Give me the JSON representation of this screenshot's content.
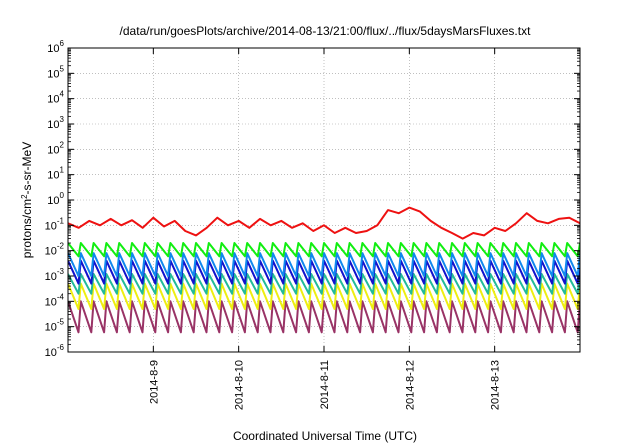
{
  "chart_data": {
    "type": "line",
    "title": "/data/run/goesPlots/archive/2014-08-13/21:00/flux/../flux/5daysMarsFluxes.txt",
    "xlabel": "Coordinated Universal Time (UTC)",
    "ylabel": {
      "base": "protons/cm",
      "sup": "2",
      "rest": "-s-sr-MeV"
    },
    "x_scale": "time",
    "xlim": [
      "2014-08-08 00:00",
      "2014-08-14 00:00"
    ],
    "x_ticks": [
      "2014-8-9",
      "2014-8-10",
      "2014-8-11",
      "2014-8-12",
      "2014-8-13"
    ],
    "y_scale": "log",
    "ylim": [
      1e-06,
      1000000
    ],
    "y_ticks": [
      {
        "base": "10",
        "exp": "6"
      },
      {
        "base": "10",
        "exp": "5"
      },
      {
        "base": "10",
        "exp": "4"
      },
      {
        "base": "10",
        "exp": "3"
      },
      {
        "base": "10",
        "exp": "2"
      },
      {
        "base": "10",
        "exp": "1"
      },
      {
        "base": "10",
        "exp": "0"
      },
      {
        "base": "10",
        "exp": "-1"
      },
      {
        "base": "10",
        "exp": "-2"
      },
      {
        "base": "10",
        "exp": "-3"
      },
      {
        "base": "10",
        "exp": "-4"
      },
      {
        "base": "10",
        "exp": "-5"
      },
      {
        "base": "10",
        "exp": "-6"
      }
    ],
    "grid": true,
    "legend": "none",
    "series": [
      {
        "color": "#ee1111",
        "x": [
          "2014-08-08 00:00",
          "2014-08-08 03:00",
          "2014-08-08 06:00",
          "2014-08-08 09:00",
          "2014-08-08 12:00",
          "2014-08-08 15:00",
          "2014-08-08 18:00",
          "2014-08-08 21:00",
          "2014-08-09 00:00",
          "2014-08-09 03:00",
          "2014-08-09 06:00",
          "2014-08-09 09:00",
          "2014-08-09 12:00",
          "2014-08-09 15:00",
          "2014-08-09 18:00",
          "2014-08-09 21:00",
          "2014-08-10 00:00",
          "2014-08-10 03:00",
          "2014-08-10 06:00",
          "2014-08-10 09:00",
          "2014-08-10 12:00",
          "2014-08-10 15:00",
          "2014-08-10 18:00",
          "2014-08-10 21:00",
          "2014-08-11 00:00",
          "2014-08-11 03:00",
          "2014-08-11 06:00",
          "2014-08-11 09:00",
          "2014-08-11 12:00",
          "2014-08-11 15:00",
          "2014-08-11 18:00",
          "2014-08-11 21:00",
          "2014-08-12 00:00",
          "2014-08-12 03:00",
          "2014-08-12 06:00",
          "2014-08-12 09:00",
          "2014-08-12 12:00",
          "2014-08-12 15:00",
          "2014-08-12 18:00",
          "2014-08-12 21:00",
          "2014-08-13 00:00",
          "2014-08-13 03:00",
          "2014-08-13 06:00",
          "2014-08-13 09:00",
          "2014-08-13 12:00",
          "2014-08-13 15:00",
          "2014-08-13 18:00",
          "2014-08-13 21:00",
          "2014-08-14 00:00"
        ],
        "values": [
          0.12,
          0.08,
          0.15,
          0.1,
          0.18,
          0.1,
          0.16,
          0.08,
          0.2,
          0.09,
          0.15,
          0.06,
          0.04,
          0.08,
          0.2,
          0.1,
          0.15,
          0.08,
          0.18,
          0.1,
          0.15,
          0.08,
          0.12,
          0.06,
          0.1,
          0.05,
          0.08,
          0.05,
          0.06,
          0.1,
          0.4,
          0.3,
          0.5,
          0.35,
          0.15,
          0.08,
          0.05,
          0.03,
          0.05,
          0.04,
          0.08,
          0.06,
          0.12,
          0.3,
          0.15,
          0.12,
          0.18,
          0.2,
          0.12
        ]
      },
      {
        "color": "#11ee11",
        "x_start": "2014-08-08 00:00",
        "x_end": "2014-08-14 00:00",
        "cycles": 40,
        "low": 0.006,
        "high": 0.02
      },
      {
        "color": "#1188ee",
        "x_start": "2014-08-08 00:00",
        "x_end": "2014-08-14 00:00",
        "cycles": 40,
        "low": 0.001,
        "high": 0.008
      },
      {
        "color": "#1111cc",
        "x_start": "2014-08-08 00:00",
        "x_end": "2014-08-14 00:00",
        "cycles": 40,
        "low": 0.0005,
        "high": 0.004
      },
      {
        "color": "#22bb99",
        "x_start": "2014-08-08 00:00",
        "x_end": "2014-08-14 00:00",
        "cycles": 40,
        "low": 0.0002,
        "high": 0.0012
      },
      {
        "color": "#eeee11",
        "x_start": "2014-08-08 00:00",
        "x_end": "2014-08-14 00:00",
        "cycles": 40,
        "low": 5e-05,
        "high": 0.0005
      },
      {
        "color": "#993366",
        "x_start": "2014-08-08 00:00",
        "x_end": "2014-08-14 00:00",
        "cycles": 40,
        "low": 6e-06,
        "high": 0.0001
      }
    ]
  }
}
